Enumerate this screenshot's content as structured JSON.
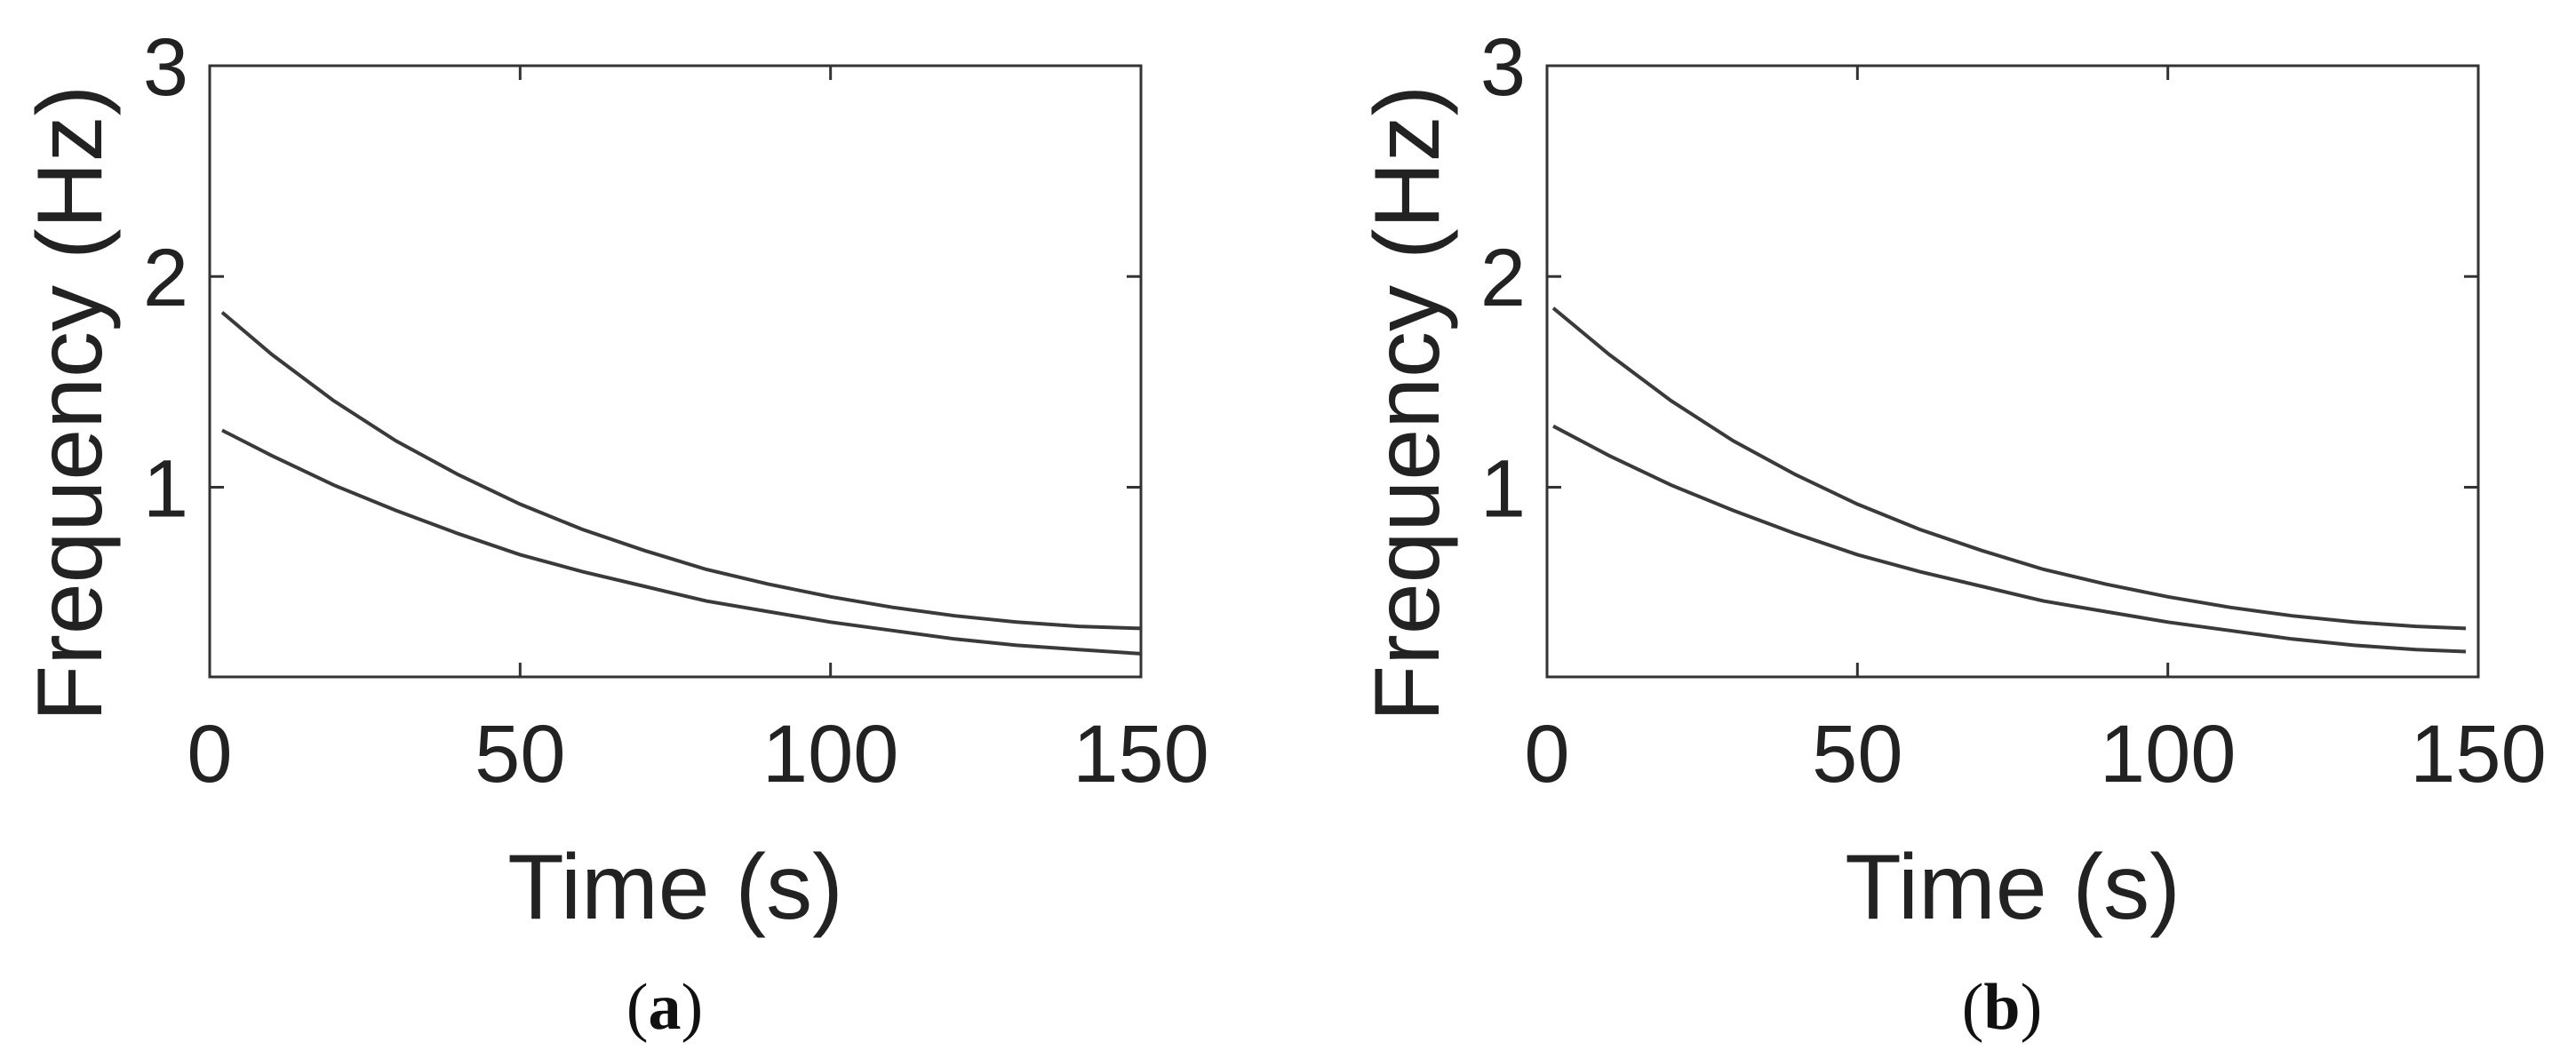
{
  "chart_data": [
    {
      "type": "line",
      "panel_label": "a",
      "xlabel": "Time (s)",
      "ylabel": "Frequency (Hz)",
      "xlim": [
        0,
        150
      ],
      "ylim": [
        0.1,
        3
      ],
      "xticks": [
        0,
        50,
        100,
        150
      ],
      "yticks": [
        1,
        2,
        3
      ],
      "grid": false,
      "series": [
        {
          "x": [
            2,
            10,
            20,
            30,
            40,
            50,
            60,
            70,
            80,
            90,
            100,
            110,
            120,
            130,
            140,
            150
          ],
          "values": [
            1.83,
            1.63,
            1.41,
            1.22,
            1.06,
            0.92,
            0.8,
            0.7,
            0.61,
            0.54,
            0.48,
            0.43,
            0.39,
            0.36,
            0.34,
            0.33
          ]
        },
        {
          "x": [
            2,
            10,
            20,
            30,
            40,
            50,
            60,
            70,
            80,
            90,
            100,
            110,
            120,
            130,
            140,
            150
          ],
          "values": [
            1.27,
            1.15,
            1.01,
            0.89,
            0.78,
            0.68,
            0.6,
            0.53,
            0.46,
            0.41,
            0.36,
            0.32,
            0.28,
            0.25,
            0.23,
            0.21
          ]
        }
      ]
    },
    {
      "type": "line",
      "panel_label": "b",
      "xlabel": "Time (s)",
      "ylabel": "Frequency (Hz)",
      "xlim": [
        0,
        150
      ],
      "ylim": [
        0.1,
        3
      ],
      "xticks": [
        0,
        50,
        100,
        150
      ],
      "yticks": [
        1,
        2,
        3
      ],
      "grid": false,
      "series": [
        {
          "x": [
            1,
            10,
            20,
            30,
            40,
            50,
            60,
            70,
            80,
            90,
            100,
            110,
            120,
            130,
            140,
            148
          ],
          "values": [
            1.85,
            1.63,
            1.41,
            1.22,
            1.06,
            0.92,
            0.8,
            0.7,
            0.61,
            0.54,
            0.48,
            0.43,
            0.39,
            0.36,
            0.34,
            0.33
          ]
        },
        {
          "x": [
            1,
            10,
            20,
            30,
            40,
            50,
            60,
            70,
            80,
            90,
            100,
            110,
            120,
            130,
            140,
            148
          ],
          "values": [
            1.29,
            1.15,
            1.01,
            0.89,
            0.78,
            0.68,
            0.6,
            0.53,
            0.46,
            0.41,
            0.36,
            0.32,
            0.28,
            0.25,
            0.23,
            0.22
          ]
        }
      ]
    }
  ]
}
